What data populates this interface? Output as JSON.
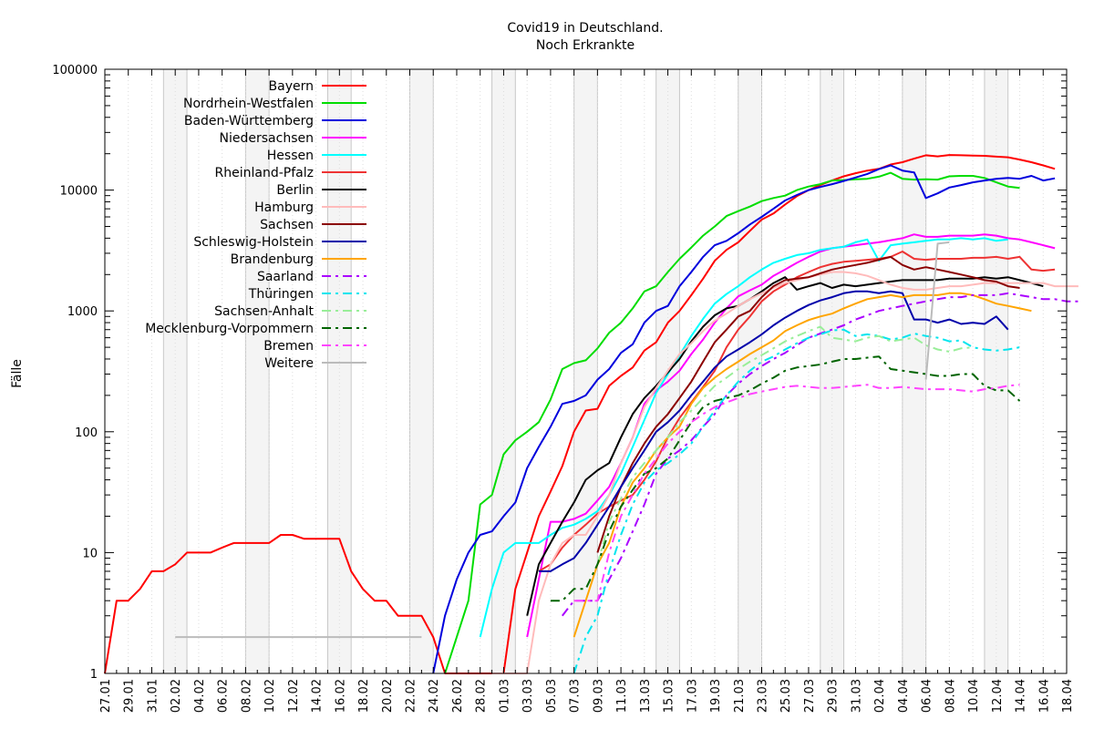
{
  "chart_data": {
    "type": "line",
    "title": "Covid19 in Deutschland.",
    "subtitle": "Noch Erkrankte",
    "ylabel": "Fälle",
    "xlabel": "",
    "yscale": "log",
    "ylim": [
      1,
      100000
    ],
    "yticks": [
      "1",
      "10",
      "100",
      "1000",
      "10000",
      "100000"
    ],
    "xlim": [
      "2020-01-27",
      "2020-04-18"
    ],
    "xticks": [
      "27.01",
      "29.01",
      "31.01",
      "02.02",
      "04.02",
      "06.02",
      "08.02",
      "10.02",
      "12.02",
      "14.02",
      "16.02",
      "18.02",
      "20.02",
      "22.02",
      "24.02",
      "26.02",
      "28.02",
      "01.03",
      "03.03",
      "05.03",
      "07.03",
      "09.03",
      "11.03",
      "13.03",
      "15.03",
      "17.03",
      "19.03",
      "21.03",
      "23.03",
      "25.03",
      "27.03",
      "29.03",
      "31.03",
      "02.04",
      "04.04",
      "06.04",
      "08.04",
      "10.04",
      "12.04",
      "14.04",
      "16.04",
      "18.04"
    ],
    "weekend_shading": true,
    "grid": true,
    "legend_position": "top-left",
    "series": [
      {
        "name": "Bayern",
        "color": "#ff0000",
        "dash": "solid",
        "start": "2020-01-27",
        "values": [
          1,
          4,
          4,
          5,
          7,
          7,
          8,
          10,
          10,
          10,
          11,
          12,
          12,
          12,
          12,
          14,
          14,
          13,
          13,
          13,
          13,
          7,
          5,
          4,
          4,
          3,
          3,
          3,
          2,
          1,
          1,
          1,
          1,
          1,
          1,
          5,
          10,
          20,
          32,
          52,
          100,
          150,
          155,
          240,
          290,
          340,
          470,
          550,
          800,
          1000,
          1350,
          1850,
          2600,
          3200,
          3700,
          4600,
          5700,
          6400,
          7600,
          8900,
          10000,
          11000,
          12000,
          13000,
          13800,
          14500,
          15000,
          16300,
          17000,
          18200,
          19400,
          19000,
          19500,
          19400,
          19300,
          19200,
          18900,
          18700,
          17900,
          17000,
          16000,
          15000
        ]
      },
      {
        "name": "Nordrhein-Westfalen",
        "color": "#00dd00",
        "dash": "solid",
        "start": "2020-02-25",
        "values": [
          1,
          2,
          4,
          25,
          30,
          65,
          85,
          100,
          120,
          185,
          330,
          370,
          390,
          490,
          660,
          800,
          1050,
          1450,
          1600,
          2100,
          2700,
          3350,
          4200,
          5000,
          6100,
          6700,
          7300,
          8100,
          8600,
          9000,
          10000,
          10700,
          11200,
          12000,
          12100,
          12300,
          12400,
          12900,
          13900,
          12400,
          12200,
          12300,
          12200,
          13000,
          13100,
          13100,
          12600,
          11600,
          10700,
          10400
        ]
      },
      {
        "name": "Baden-Württemberg",
        "color": "#0000dd",
        "dash": "solid",
        "start": "2020-02-24",
        "values": [
          1,
          3,
          6,
          10,
          14,
          15,
          20,
          26,
          50,
          75,
          110,
          170,
          180,
          200,
          270,
          330,
          450,
          530,
          800,
          1000,
          1100,
          1600,
          2100,
          2800,
          3500,
          3800,
          4400,
          5200,
          6000,
          7000,
          8200,
          9100,
          10000,
          10600,
          11200,
          11900,
          12700,
          13600,
          14900,
          16000,
          14500,
          14000,
          8600,
          9400,
          10500,
          11000,
          11600,
          12000,
          12400,
          12600,
          12400,
          13100,
          12000,
          12500
        ]
      },
      {
        "name": "Niedersachsen",
        "color": "#ff00ff",
        "dash": "solid",
        "start": "2020-03-03",
        "values": [
          2,
          6,
          18,
          18,
          19,
          21,
          27,
          35,
          55,
          90,
          170,
          220,
          260,
          320,
          440,
          580,
          800,
          1050,
          1320,
          1480,
          1650,
          1950,
          2200,
          2500,
          2800,
          3100,
          3300,
          3400,
          3500,
          3600,
          3700,
          3850,
          4000,
          4300,
          4100,
          4100,
          4200,
          4200,
          4200,
          4300,
          4200,
          4000,
          3900,
          3700,
          3500,
          3300
        ]
      },
      {
        "name": "Hessen",
        "color": "#00ffff",
        "dash": "solid",
        "start": "2020-02-28",
        "values": [
          2,
          5,
          10,
          12,
          12,
          12,
          14,
          16,
          17,
          19,
          22,
          30,
          45,
          75,
          125,
          210,
          300,
          430,
          620,
          860,
          1150,
          1380,
          1600,
          1900,
          2200,
          2500,
          2700,
          2900,
          3000,
          3200,
          3300,
          3400,
          3700,
          3900,
          2600,
          3500,
          3600,
          3700,
          3800,
          3900,
          3900,
          4000,
          3900,
          4000,
          3800,
          3900
        ]
      },
      {
        "name": "Rheinland-Pfalz",
        "color": "#ee3333",
        "dash": "solid",
        "start": "2020-03-04",
        "values": [
          7,
          8,
          11,
          14,
          17,
          21,
          24,
          27,
          30,
          40,
          57,
          90,
          130,
          175,
          235,
          320,
          500,
          700,
          900,
          1200,
          1450,
          1650,
          1900,
          2100,
          2300,
          2450,
          2550,
          2600,
          2650,
          2700,
          2800,
          3100,
          2700,
          2650,
          2700,
          2700,
          2700,
          2750,
          2750,
          2800,
          2700,
          2800,
          2200,
          2150,
          2200
        ]
      },
      {
        "name": "Berlin",
        "color": "#000000",
        "dash": "solid",
        "start": "2020-03-03",
        "values": [
          3,
          8,
          12,
          18,
          26,
          40,
          48,
          55,
          90,
          140,
          190,
          240,
          310,
          400,
          560,
          740,
          920,
          1050,
          1100,
          1250,
          1450,
          1700,
          1900,
          1500,
          1600,
          1700,
          1550,
          1650,
          1600,
          1650,
          1700,
          1750,
          1800,
          1800,
          1800,
          1800,
          1850,
          1850,
          1850,
          1900,
          1850,
          1900,
          1800,
          1700,
          1600
        ]
      },
      {
        "name": "Hamburg",
        "color": "#ffbbbb",
        "dash": "solid",
        "start": "2020-02-29",
        "values": [
          1,
          1,
          1,
          1,
          4,
          8,
          12,
          14,
          14,
          20,
          30,
          55,
          90,
          160,
          230,
          320,
          440,
          540,
          680,
          830,
          950,
          1100,
          1250,
          1400,
          1550,
          1700,
          1800,
          1900,
          2000,
          2100,
          2100,
          2050,
          1950,
          1800,
          1650,
          1550,
          1500,
          1500,
          1550,
          1600,
          1600,
          1650,
          1700,
          1700,
          1700,
          1700,
          1700,
          1700,
          1600,
          1600,
          1600
        ]
      },
      {
        "name": "Sachsen",
        "color": "#8b0000",
        "dash": "solid",
        "start": "2020-03-09",
        "values": [
          10,
          20,
          35,
          55,
          80,
          110,
          140,
          190,
          260,
          380,
          550,
          700,
          900,
          1000,
          1300,
          1600,
          1800,
          1850,
          1900,
          2050,
          2200,
          2300,
          2400,
          2500,
          2650,
          2800,
          2400,
          2200,
          2300,
          2200,
          2100,
          2000,
          1900,
          1800,
          1750,
          1600,
          1550
        ]
      },
      {
        "name": "Schleswig-Holstein",
        "color": "#0000aa",
        "dash": "solid",
        "start": "2020-03-04",
        "values": [
          7,
          7,
          8,
          9,
          12,
          17,
          24,
          35,
          50,
          70,
          100,
          120,
          150,
          200,
          260,
          340,
          420,
          480,
          550,
          640,
          760,
          880,
          1000,
          1120,
          1220,
          1300,
          1400,
          1450,
          1450,
          1400,
          1450,
          1400,
          850,
          850,
          800,
          850,
          780,
          800,
          780,
          900,
          700
        ]
      },
      {
        "name": "Brandenburg",
        "color": "#ffa500",
        "dash": "solid",
        "start": "2020-03-07",
        "values": [
          2,
          4,
          8,
          12,
          24,
          38,
          50,
          70,
          90,
          110,
          170,
          230,
          280,
          330,
          380,
          440,
          500,
          570,
          680,
          760,
          840,
          900,
          950,
          1050,
          1150,
          1250,
          1300,
          1350,
          1300,
          1350,
          1350,
          1350,
          1400,
          1400,
          1350,
          1250,
          1150,
          1100,
          1050,
          1000
        ]
      },
      {
        "name": "Saarland",
        "color": "#aa00ff",
        "dash": "dashdot",
        "start": "2020-03-06",
        "values": [
          3,
          4,
          4,
          4,
          6,
          9,
          15,
          25,
          45,
          60,
          70,
          85,
          110,
          140,
          200,
          250,
          300,
          350,
          400,
          450,
          520,
          600,
          650,
          700,
          760,
          850,
          920,
          1000,
          1050,
          1100,
          1150,
          1200,
          1250,
          1300,
          1300,
          1350,
          1350,
          1350,
          1400,
          1350,
          1300,
          1250,
          1250,
          1200,
          1200
        ]
      },
      {
        "name": "Thüringen",
        "color": "#00e5ee",
        "dash": "dashdot",
        "start": "2020-03-07",
        "values": [
          1,
          2,
          3,
          7,
          14,
          25,
          38,
          48,
          55,
          65,
          80,
          110,
          150,
          200,
          260,
          320,
          380,
          420,
          480,
          540,
          600,
          640,
          690,
          700,
          620,
          640,
          620,
          580,
          600,
          650,
          620,
          600,
          560,
          570,
          500,
          480,
          470,
          480,
          500
        ]
      },
      {
        "name": "Sachsen-Anhalt",
        "color": "#99ee99",
        "dash": "dashdot",
        "start": "2020-03-09",
        "values": [
          8,
          18,
          28,
          42,
          55,
          70,
          90,
          120,
          150,
          190,
          240,
          280,
          330,
          380,
          430,
          490,
          560,
          620,
          680,
          740,
          600,
          580,
          560,
          600,
          620,
          560,
          580,
          600,
          520,
          480,
          460,
          490,
          500
        ]
      },
      {
        "name": "Mecklenburg-Vorpommern",
        "color": "#006400",
        "dash": "dashdot",
        "start": "2020-03-05",
        "values": [
          4,
          4,
          5,
          5,
          8,
          15,
          24,
          33,
          45,
          50,
          60,
          85,
          120,
          160,
          180,
          190,
          200,
          220,
          250,
          280,
          320,
          340,
          350,
          360,
          380,
          400,
          400,
          410,
          420,
          330,
          320,
          310,
          300,
          290,
          290,
          300,
          300,
          240,
          220,
          220,
          180
        ]
      },
      {
        "name": "Bremen",
        "color": "#ff44ff",
        "dash": "dashdot",
        "start": "2020-03-07",
        "values": [
          4,
          4,
          4,
          10,
          20,
          30,
          45,
          60,
          80,
          100,
          120,
          140,
          160,
          175,
          190,
          205,
          215,
          225,
          235,
          240,
          235,
          230,
          230,
          235,
          240,
          245,
          230,
          230,
          235,
          230,
          225,
          225,
          225,
          220,
          215,
          225,
          230,
          240,
          245
        ]
      },
      {
        "name": "Weitere",
        "color": "#bbbbbb",
        "dash": "solid",
        "start": "2020-02-02",
        "values": [
          2,
          2,
          2,
          2,
          2,
          2,
          2,
          2,
          2,
          2,
          2,
          2,
          2,
          2,
          2,
          2,
          2,
          2,
          2,
          2,
          2,
          2
        ]
      },
      {
        "name": "",
        "color": "#bbbbbb",
        "dash": "solid",
        "start": "2020-04-06",
        "values": [
          270,
          3600,
          3700
        ]
      }
    ]
  }
}
